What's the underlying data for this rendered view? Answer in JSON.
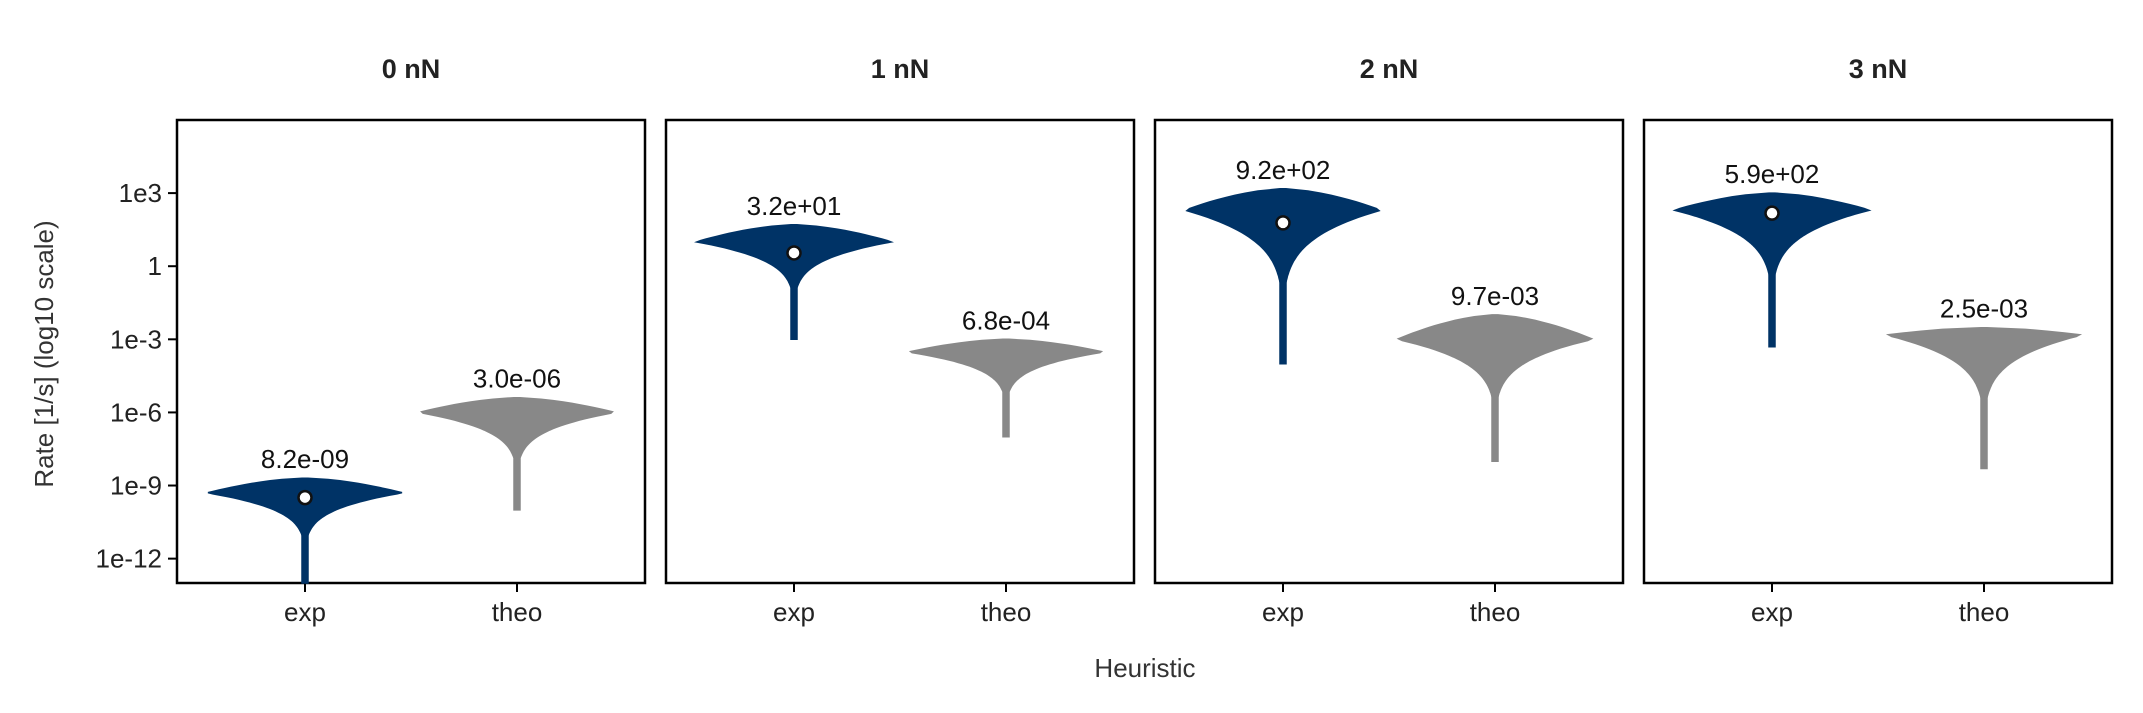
{
  "chart_data": {
    "type": "violin",
    "xlabel": "Heuristic",
    "ylabel": "Rate [1/s] (log10 scale)",
    "y_scale": "log10",
    "ylim": [
      1e-13,
      1000000.0
    ],
    "yticks": [
      1e-12,
      1e-09,
      1e-06,
      0.001,
      1,
      1000.0
    ],
    "ytick_labels": [
      "1e-12",
      "1e-9",
      "1e-6",
      "1e-3",
      "1",
      "1e3"
    ],
    "categories": [
      "exp",
      "theo"
    ],
    "colors": {
      "exp": "#003366",
      "theo": "#888888"
    },
    "grid": false,
    "panels": [
      {
        "title": "0 nN",
        "violins": [
          {
            "category": "exp",
            "label": "8.2e-09",
            "min": 1e-13,
            "max": 2e-09,
            "peak": 5e-10,
            "mean_marker": 3.2e-10
          },
          {
            "category": "theo",
            "label": "3.0e-06",
            "min": 1e-10,
            "max": 4e-06,
            "peak": 1e-06
          }
        ]
      },
      {
        "title": "1 nN",
        "violins": [
          {
            "category": "exp",
            "label": "3.2e+01",
            "min": 0.001,
            "max": 50,
            "peak": 10,
            "mean_marker": 3.5
          },
          {
            "category": "theo",
            "label": "6.8e-04",
            "min": 1e-07,
            "max": 0.001,
            "peak": 0.0003
          }
        ]
      },
      {
        "title": "2 nN",
        "violins": [
          {
            "category": "exp",
            "label": "9.2e+02",
            "min": 0.0001,
            "max": 1500,
            "peak": 200,
            "mean_marker": 60
          },
          {
            "category": "theo",
            "label": "9.7e-03",
            "min": 1e-08,
            "max": 0.01,
            "peak": 0.001
          }
        ]
      },
      {
        "title": "3 nN",
        "violins": [
          {
            "category": "exp",
            "label": "5.9e+02",
            "min": 0.0005,
            "max": 1000,
            "peak": 200,
            "mean_marker": 150
          },
          {
            "category": "theo",
            "label": "2.5e-03",
            "min": 5e-09,
            "max": 0.003,
            "peak": 0.0015
          }
        ]
      }
    ]
  }
}
